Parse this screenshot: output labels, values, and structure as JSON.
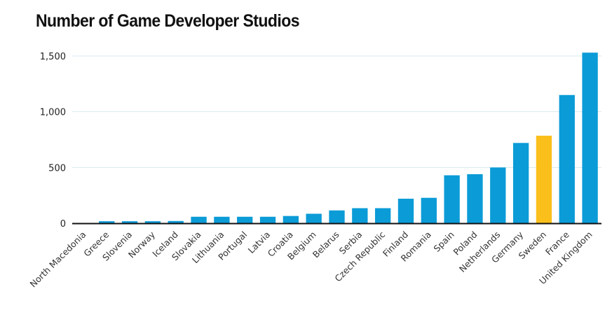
{
  "chart_data": {
    "type": "bar",
    "title": "Number of Game Developer Studios",
    "xlabel": "",
    "ylabel": "",
    "ylim": [
      0,
      1500
    ],
    "yticks": [
      0,
      500,
      1000,
      1500
    ],
    "ytick_labels": [
      "0",
      "500",
      "1,000",
      "1,500"
    ],
    "grid": true,
    "categories": [
      "North Macedonia",
      "Greece",
      "Slovenia",
      "Norway",
      "Iceland",
      "Slovakia",
      "Lithuania",
      "Portugal",
      "Latvia",
      "Croatia",
      "Belgium",
      "Belarus",
      "Serbia",
      "Czech Republic",
      "Finland",
      "Romania",
      "Spain",
      "Poland",
      "Netherlands",
      "Germany",
      "Sweden",
      "France",
      "United Kingdom"
    ],
    "values": [
      3,
      18,
      18,
      18,
      20,
      58,
      58,
      58,
      58,
      65,
      85,
      115,
      135,
      135,
      220,
      228,
      430,
      440,
      500,
      720,
      785,
      1150,
      1530
    ],
    "highlight": "Sweden",
    "colors": {
      "bar": "#0b9bd7",
      "highlight": "#fbbf1b",
      "axis": "#111111",
      "grid": "#d6e9ee"
    }
  }
}
